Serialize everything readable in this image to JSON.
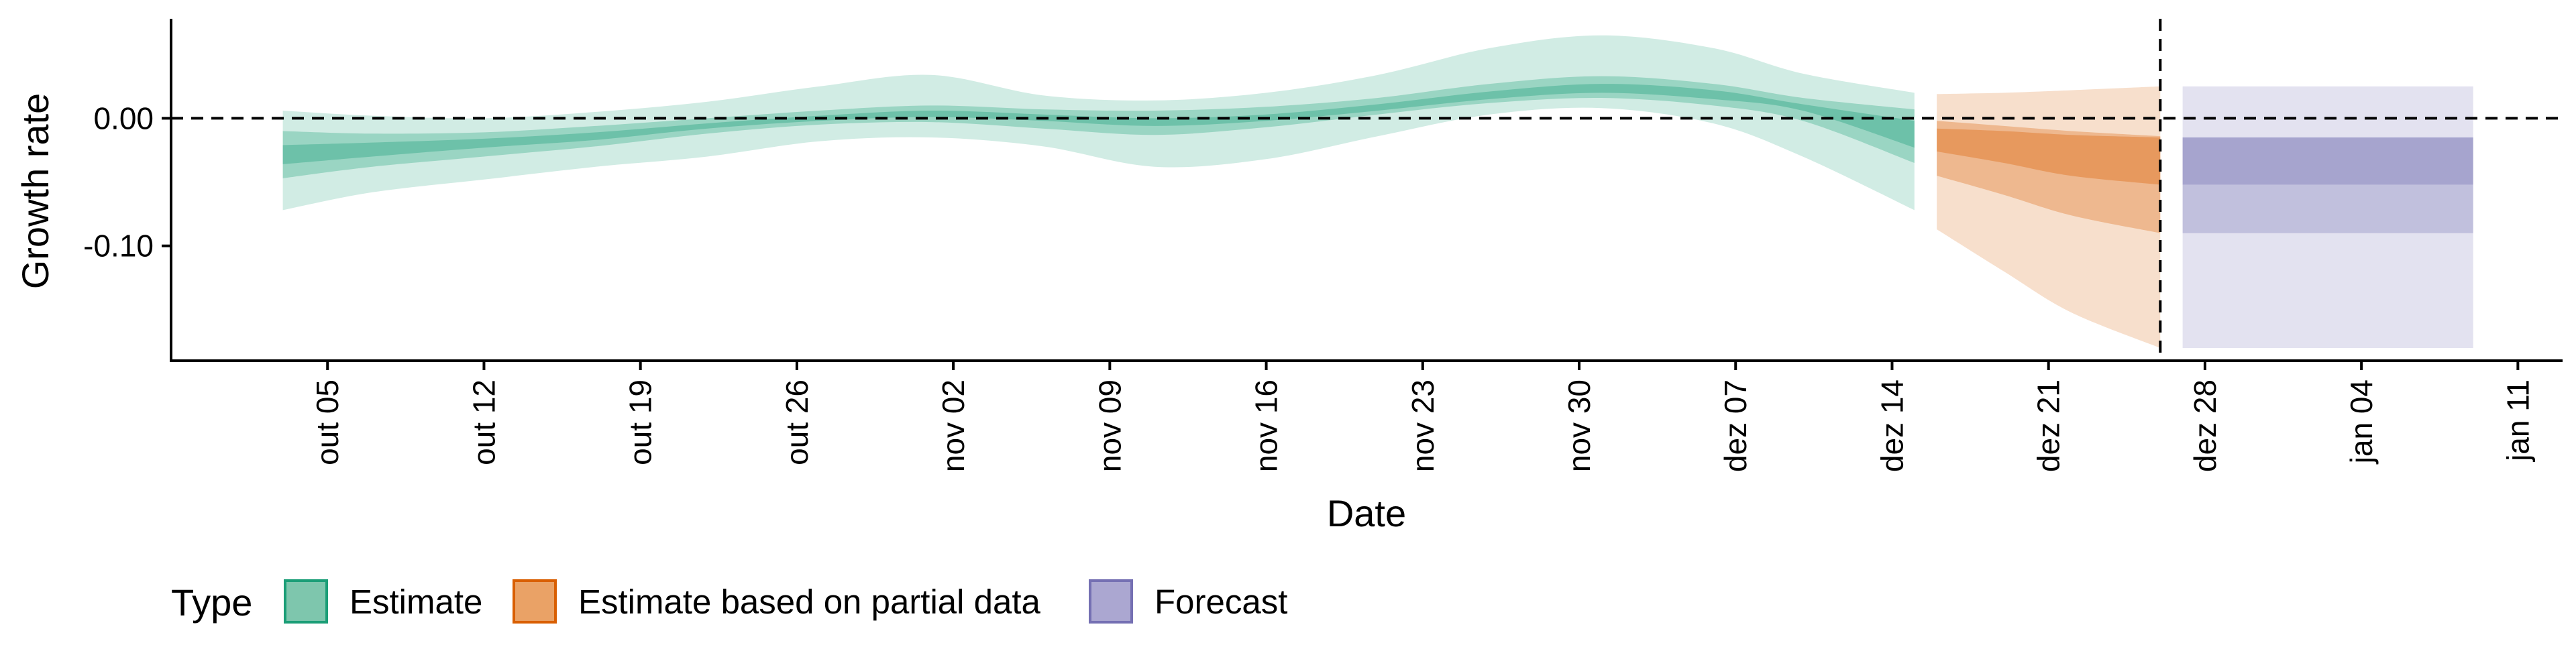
{
  "chart_data": {
    "type": "area",
    "xlabel": "Date",
    "ylabel": "Growth rate",
    "x_range": [
      "2020-09-28",
      "2021-01-13"
    ],
    "y_range": [
      -0.19,
      0.078
    ],
    "y_ticks": [
      {
        "value": 0.0,
        "label": "0.00"
      },
      {
        "value": -0.1,
        "label": "-0.10"
      }
    ],
    "x_ticks": [
      {
        "date": "2020-10-05",
        "label": "out 05"
      },
      {
        "date": "2020-10-12",
        "label": "out 12"
      },
      {
        "date": "2020-10-19",
        "label": "out 19"
      },
      {
        "date": "2020-10-26",
        "label": "out 26"
      },
      {
        "date": "2020-11-02",
        "label": "nov 02"
      },
      {
        "date": "2020-11-09",
        "label": "nov 09"
      },
      {
        "date": "2020-11-16",
        "label": "nov 16"
      },
      {
        "date": "2020-11-23",
        "label": "nov 23"
      },
      {
        "date": "2020-11-30",
        "label": "nov 30"
      },
      {
        "date": "2020-12-07",
        "label": "dez 07"
      },
      {
        "date": "2020-12-14",
        "label": "dez 14"
      },
      {
        "date": "2020-12-21",
        "label": "dez 21"
      },
      {
        "date": "2020-12-28",
        "label": "dez 28"
      },
      {
        "date": "2021-01-04",
        "label": "jan 04"
      },
      {
        "date": "2021-01-11",
        "label": "jan 11"
      }
    ],
    "reference_lines": [
      {
        "axis": "y",
        "value": 0.0,
        "style": "dashed"
      },
      {
        "axis": "x",
        "date": "2020-12-26",
        "style": "dashed"
      }
    ],
    "grid": false,
    "legend": {
      "title": "Type",
      "position": "bottom-left",
      "items": [
        {
          "label": "Estimate",
          "fill": "#7ec6ad",
          "stroke": "#1b9e77"
        },
        {
          "label": "Estimate based on partial data",
          "fill": "#eaa266",
          "stroke": "#d95f02"
        },
        {
          "label": "Forecast",
          "fill": "#aba7d1",
          "stroke": "#7570b3"
        }
      ]
    },
    "series": [
      {
        "name": "Estimate",
        "color": "#1b9e77",
        "dates": [
          "2020-10-03",
          "2020-10-07",
          "2020-10-12",
          "2020-10-17",
          "2020-10-22",
          "2020-10-27",
          "2020-11-01",
          "2020-11-06",
          "2020-11-11",
          "2020-11-16",
          "2020-11-21",
          "2020-11-26",
          "2020-12-01",
          "2020-12-06",
          "2020-12-10",
          "2020-12-15"
        ],
        "outer": {
          "lower": [
            -0.072,
            -0.058,
            -0.048,
            -0.038,
            -0.03,
            -0.018,
            -0.015,
            -0.022,
            -0.038,
            -0.032,
            -0.014,
            0.003,
            0.008,
            -0.004,
            -0.03,
            -0.072
          ],
          "upper": [
            0.006,
            0.002,
            0.0,
            0.005,
            0.013,
            0.025,
            0.034,
            0.018,
            0.014,
            0.02,
            0.034,
            0.055,
            0.065,
            0.055,
            0.035,
            0.02
          ]
        },
        "middle": {
          "lower": [
            -0.047,
            -0.038,
            -0.03,
            -0.022,
            -0.012,
            -0.005,
            -0.003,
            -0.008,
            -0.013,
            -0.007,
            0.003,
            0.012,
            0.016,
            0.01,
            -0.002,
            -0.035
          ],
          "upper": [
            -0.01,
            -0.012,
            -0.011,
            -0.006,
            0.0,
            0.006,
            0.01,
            0.007,
            0.006,
            0.009,
            0.016,
            0.027,
            0.033,
            0.027,
            0.016,
            0.007
          ]
        },
        "inner": {
          "lower": [
            -0.036,
            -0.03,
            -0.023,
            -0.017,
            -0.008,
            -0.002,
            0.001,
            -0.002,
            -0.006,
            -0.002,
            0.006,
            0.015,
            0.02,
            0.015,
            0.006,
            -0.023
          ],
          "upper": [
            -0.021,
            -0.019,
            -0.016,
            -0.011,
            -0.004,
            0.002,
            0.006,
            0.003,
            0.0,
            0.003,
            0.011,
            0.021,
            0.027,
            0.022,
            0.011,
            -0.002
          ]
        }
      },
      {
        "name": "Estimate based on partial data",
        "color": "#d95f02",
        "dates": [
          "2020-12-16",
          "2020-12-19",
          "2020-12-22",
          "2020-12-26"
        ],
        "outer": {
          "lower": [
            -0.087,
            -0.12,
            -0.152,
            -0.18
          ],
          "upper": [
            0.019,
            0.02,
            0.022,
            0.025
          ]
        },
        "middle": {
          "lower": [
            -0.045,
            -0.06,
            -0.076,
            -0.09
          ],
          "upper": [
            -0.002,
            -0.006,
            -0.01,
            -0.014
          ]
        },
        "inner": {
          "lower": [
            -0.026,
            -0.035,
            -0.045,
            -0.052
          ],
          "upper": [
            -0.008,
            -0.01,
            -0.013,
            -0.015
          ]
        }
      },
      {
        "name": "Forecast",
        "color": "#7570b3",
        "dates": [
          "2020-12-27",
          "2021-01-09"
        ],
        "outer": {
          "lower": [
            -0.18,
            -0.18
          ],
          "upper": [
            0.025,
            0.025
          ]
        },
        "middle": {
          "lower": [
            -0.09,
            -0.09
          ],
          "upper": [
            -0.015,
            -0.015
          ]
        },
        "inner": {
          "lower": [
            -0.052,
            -0.052
          ],
          "upper": [
            -0.015,
            -0.015
          ]
        }
      }
    ]
  }
}
